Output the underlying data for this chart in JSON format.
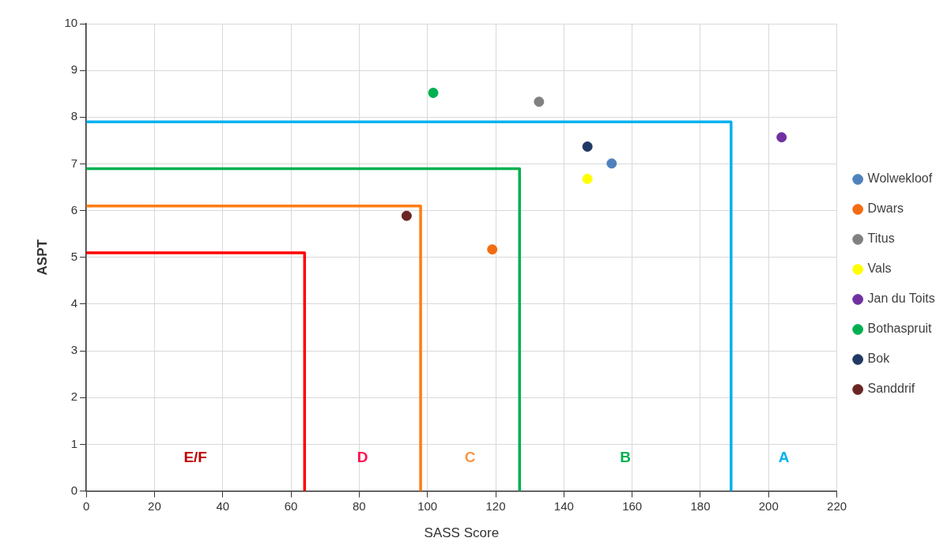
{
  "chart_data": {
    "type": "scatter",
    "xlabel": "SASS Score",
    "ylabel": "ASPT",
    "xlim": [
      0,
      220
    ],
    "ylim": [
      0,
      10
    ],
    "xticks": [
      0,
      20,
      40,
      60,
      80,
      100,
      120,
      140,
      160,
      180,
      200,
      220
    ],
    "yticks": [
      0,
      1,
      2,
      3,
      4,
      5,
      6,
      7,
      8,
      9,
      10
    ],
    "grid": true,
    "legend": "right",
    "marker": "circle",
    "series": [
      {
        "name": "Wolwekloof",
        "color": "#4f81bd",
        "x": [
          154
        ],
        "values": [
          7.01
        ]
      },
      {
        "name": "Dwars",
        "color": "#f36c12",
        "x": [
          119
        ],
        "values": [
          5.17
        ]
      },
      {
        "name": "Titus",
        "color": "#808080",
        "x": [
          132.7
        ],
        "values": [
          8.33
        ]
      },
      {
        "name": "Vals",
        "color": "#ffff00",
        "x": [
          146.9
        ],
        "values": [
          6.68
        ]
      },
      {
        "name": "Jan du Toits",
        "color": "#7030a0",
        "x": [
          203.8
        ],
        "values": [
          7.57
        ]
      },
      {
        "name": "Bothaspruit",
        "color": "#00b050",
        "x": [
          101.7
        ],
        "values": [
          8.52
        ]
      },
      {
        "name": "Bok",
        "color": "#1f3864",
        "x": [
          146.9
        ],
        "values": [
          7.37
        ]
      },
      {
        "name": "Sanddrif",
        "color": "#6b2424",
        "x": [
          93.9
        ],
        "values": [
          5.89
        ]
      },
      {
        "type": "line",
        "color": "#ff0000",
        "marker": "none",
        "x": [
          0,
          64,
          64
        ],
        "values": [
          5.1,
          5.1,
          0
        ]
      },
      {
        "type": "line",
        "color": "#ff7c12",
        "marker": "none",
        "x": [
          0,
          98,
          98
        ],
        "values": [
          6.1,
          6.1,
          0
        ]
      },
      {
        "type": "line",
        "color": "#00b050",
        "marker": "none",
        "x": [
          0,
          127,
          127
        ],
        "values": [
          6.9,
          6.9,
          0
        ]
      },
      {
        "type": "line",
        "color": "#00b0f0",
        "marker": "none",
        "x": [
          0,
          189,
          189
        ],
        "values": [
          7.9,
          7.9,
          0
        ]
      }
    ],
    "annotations": [
      "E/F",
      "D",
      "C",
      "B",
      "A"
    ]
  }
}
